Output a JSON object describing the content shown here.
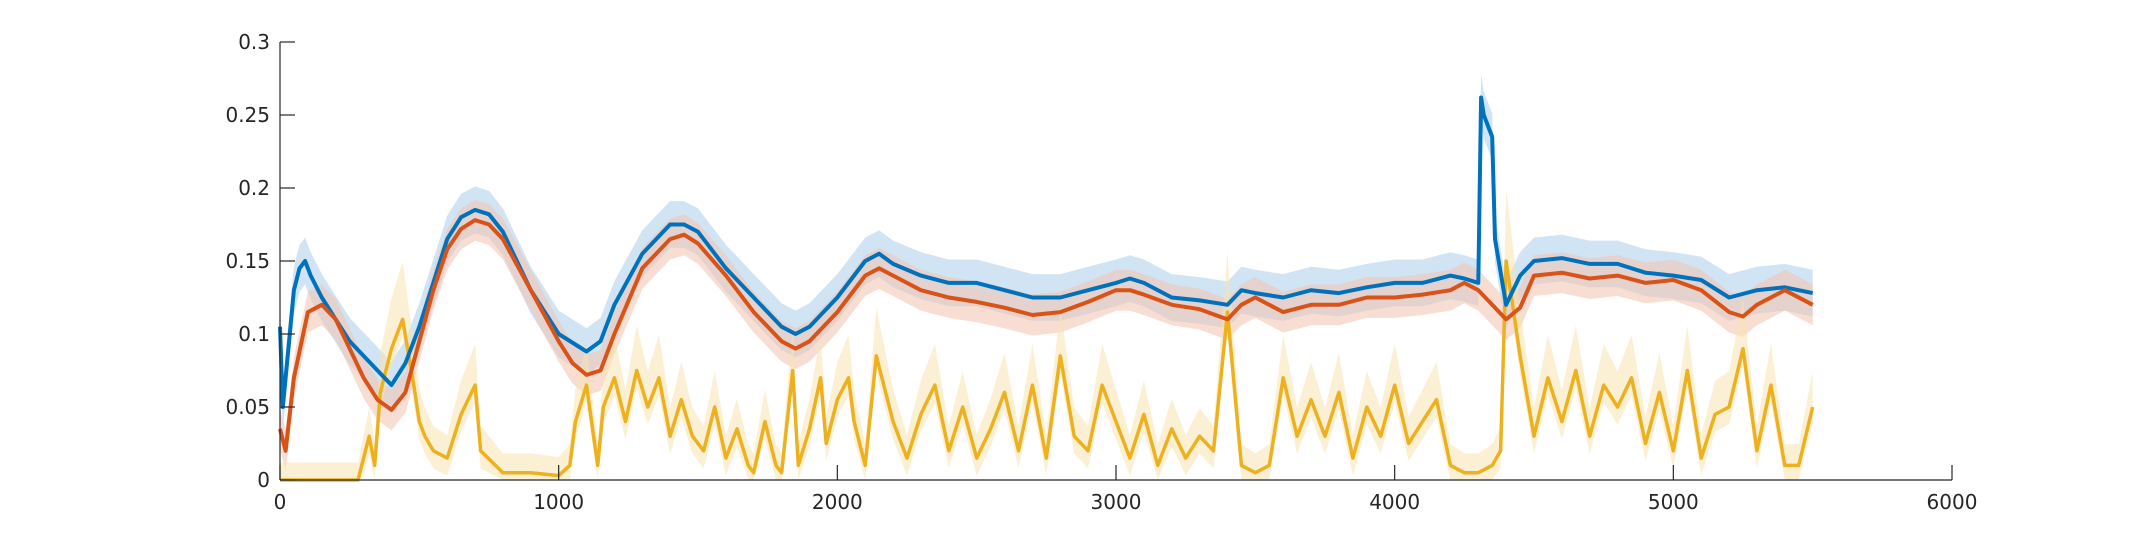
{
  "chart_data": {
    "type": "line",
    "title": "",
    "xlabel": "",
    "ylabel": "",
    "xlim": [
      0,
      6000
    ],
    "ylim": [
      0,
      0.3
    ],
    "xticks": [
      0,
      1000,
      2000,
      3000,
      4000,
      5000,
      6000
    ],
    "xtick_labels": [
      "0",
      "1000",
      "2000",
      "3000",
      "4000",
      "5000",
      "6000"
    ],
    "yticks": [
      0,
      0.05,
      0.1,
      0.15,
      0.2,
      0.25,
      0.3
    ],
    "ytick_labels": [
      "0",
      "0.05",
      "0.1",
      "0.15",
      "0.2",
      "0.25",
      "0.3"
    ],
    "grid": false,
    "legend": "none",
    "colors": {
      "series1": "#0072BD",
      "series1_band": "#A9CDEB",
      "series2": "#D95319",
      "series2_band": "#F2C6B4",
      "series3": "#EDB120",
      "series3_band": "#F8E3B0"
    },
    "series": [
      {
        "x": [
          0,
          10,
          30,
          50,
          70,
          90,
          110,
          150,
          200,
          250,
          300,
          350,
          400,
          450,
          500,
          550,
          600,
          650,
          700,
          750,
          800,
          900,
          1000,
          1100,
          1150,
          1200,
          1300,
          1400,
          1450,
          1500,
          1600,
          1700,
          1800,
          1850,
          1900,
          2000,
          2100,
          2150,
          2200,
          2300,
          2400,
          2500,
          2600,
          2700,
          2800,
          2900,
          3000,
          3050,
          3100,
          3200,
          3300,
          3400,
          3450,
          3500,
          3600,
          3700,
          3800,
          3900,
          4000,
          4100,
          4200,
          4250,
          4300,
          4310,
          4320,
          4330,
          4340,
          4350,
          4360,
          4400,
          4450,
          4500,
          4600,
          4700,
          4800,
          4900,
          5000,
          5100,
          5200,
          5300,
          5400,
          5500
        ],
        "y": [
          0.105,
          0.05,
          0.09,
          0.13,
          0.145,
          0.15,
          0.14,
          0.125,
          0.11,
          0.095,
          0.085,
          0.075,
          0.065,
          0.08,
          0.105,
          0.135,
          0.165,
          0.18,
          0.185,
          0.182,
          0.17,
          0.13,
          0.1,
          0.088,
          0.095,
          0.12,
          0.155,
          0.175,
          0.175,
          0.17,
          0.145,
          0.125,
          0.105,
          0.1,
          0.105,
          0.125,
          0.15,
          0.155,
          0.148,
          0.14,
          0.135,
          0.135,
          0.13,
          0.125,
          0.125,
          0.13,
          0.135,
          0.138,
          0.135,
          0.125,
          0.123,
          0.12,
          0.13,
          0.128,
          0.125,
          0.13,
          0.128,
          0.132,
          0.135,
          0.135,
          0.14,
          0.138,
          0.135,
          0.262,
          0.25,
          0.245,
          0.24,
          0.235,
          0.165,
          0.12,
          0.14,
          0.15,
          0.152,
          0.148,
          0.148,
          0.142,
          0.14,
          0.137,
          0.125,
          0.13,
          0.132,
          0.128
        ]
      },
      {
        "x": [
          0,
          20,
          50,
          100,
          150,
          200,
          250,
          300,
          350,
          400,
          450,
          500,
          550,
          600,
          650,
          700,
          750,
          800,
          900,
          1000,
          1050,
          1100,
          1150,
          1200,
          1300,
          1400,
          1450,
          1500,
          1600,
          1700,
          1800,
          1850,
          1900,
          2000,
          2100,
          2150,
          2200,
          2300,
          2400,
          2500,
          2600,
          2700,
          2800,
          2900,
          3000,
          3050,
          3100,
          3200,
          3300,
          3400,
          3450,
          3500,
          3600,
          3700,
          3800,
          3900,
          4000,
          4100,
          4200,
          4250,
          4300,
          4350,
          4400,
          4450,
          4500,
          4600,
          4700,
          4800,
          4900,
          5000,
          5100,
          5200,
          5250,
          5300,
          5400,
          5500
        ],
        "y": [
          0.035,
          0.02,
          0.07,
          0.115,
          0.12,
          0.11,
          0.09,
          0.07,
          0.055,
          0.048,
          0.06,
          0.095,
          0.13,
          0.158,
          0.172,
          0.178,
          0.175,
          0.165,
          0.13,
          0.095,
          0.08,
          0.072,
          0.075,
          0.1,
          0.145,
          0.165,
          0.168,
          0.162,
          0.14,
          0.115,
          0.095,
          0.09,
          0.095,
          0.115,
          0.14,
          0.145,
          0.14,
          0.13,
          0.125,
          0.122,
          0.118,
          0.113,
          0.115,
          0.122,
          0.13,
          0.13,
          0.127,
          0.12,
          0.117,
          0.11,
          0.12,
          0.125,
          0.115,
          0.12,
          0.12,
          0.125,
          0.125,
          0.127,
          0.13,
          0.135,
          0.13,
          0.12,
          0.11,
          0.118,
          0.14,
          0.142,
          0.138,
          0.14,
          0.135,
          0.137,
          0.13,
          0.115,
          0.112,
          0.12,
          0.13,
          0.12
        ]
      },
      {
        "x": [
          0,
          100,
          200,
          280,
          300,
          320,
          340,
          360,
          400,
          440,
          480,
          500,
          520,
          550,
          600,
          650,
          700,
          720,
          800,
          900,
          1000,
          1040,
          1060,
          1100,
          1140,
          1160,
          1200,
          1240,
          1280,
          1320,
          1360,
          1400,
          1440,
          1480,
          1520,
          1560,
          1600,
          1640,
          1680,
          1700,
          1740,
          1780,
          1800,
          1840,
          1860,
          1900,
          1940,
          1960,
          2000,
          2040,
          2060,
          2100,
          2140,
          2200,
          2250,
          2300,
          2350,
          2400,
          2450,
          2500,
          2550,
          2600,
          2650,
          2700,
          2750,
          2800,
          2850,
          2900,
          2950,
          3000,
          3050,
          3100,
          3150,
          3200,
          3250,
          3300,
          3350,
          3400,
          3450,
          3500,
          3550,
          3600,
          3650,
          3700,
          3750,
          3800,
          3850,
          3900,
          3950,
          4000,
          4050,
          4100,
          4150,
          4200,
          4250,
          4300,
          4350,
          4380,
          4400,
          4450,
          4500,
          4550,
          4600,
          4650,
          4700,
          4750,
          4800,
          4850,
          4900,
          4950,
          5000,
          5050,
          5100,
          5150,
          5200,
          5250,
          5300,
          5350,
          5400,
          5450,
          5500
        ],
        "y": [
          0.0,
          0.0,
          0.0,
          0.0,
          0.015,
          0.03,
          0.01,
          0.06,
          0.09,
          0.11,
          0.065,
          0.04,
          0.03,
          0.02,
          0.015,
          0.045,
          0.065,
          0.02,
          0.005,
          0.005,
          0.003,
          0.01,
          0.04,
          0.065,
          0.01,
          0.05,
          0.07,
          0.04,
          0.075,
          0.05,
          0.07,
          0.03,
          0.055,
          0.03,
          0.02,
          0.05,
          0.015,
          0.035,
          0.01,
          0.005,
          0.04,
          0.01,
          0.005,
          0.075,
          0.01,
          0.035,
          0.07,
          0.025,
          0.055,
          0.07,
          0.04,
          0.01,
          0.085,
          0.04,
          0.015,
          0.045,
          0.065,
          0.02,
          0.05,
          0.015,
          0.035,
          0.06,
          0.02,
          0.065,
          0.015,
          0.085,
          0.03,
          0.02,
          0.065,
          0.04,
          0.015,
          0.045,
          0.01,
          0.035,
          0.015,
          0.03,
          0.02,
          0.115,
          0.01,
          0.005,
          0.01,
          0.07,
          0.03,
          0.055,
          0.03,
          0.06,
          0.015,
          0.05,
          0.03,
          0.065,
          0.025,
          0.04,
          0.055,
          0.01,
          0.005,
          0.005,
          0.01,
          0.02,
          0.15,
          0.085,
          0.03,
          0.07,
          0.04,
          0.075,
          0.03,
          0.065,
          0.05,
          0.07,
          0.025,
          0.06,
          0.02,
          0.075,
          0.015,
          0.045,
          0.05,
          0.09,
          0.02,
          0.065,
          0.01,
          0.01,
          0.05
        ]
      }
    ]
  }
}
